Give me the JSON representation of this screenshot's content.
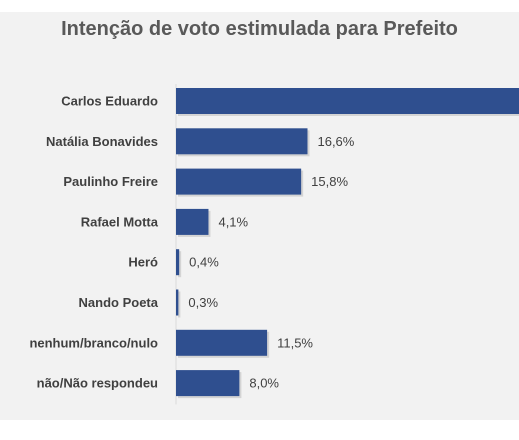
{
  "chart_data": {
    "type": "bar",
    "orientation": "horizontal",
    "title": "Intenção de voto estimulada para Prefeito",
    "categories": [
      "Carlos Eduardo",
      "Natália Bonavides",
      "Paulinho Freire",
      "Rafael Motta",
      "Heró",
      "Nando Poeta",
      "nenhum/branco/nulo",
      "não/Não respondeu"
    ],
    "values": [
      43.3,
      16.6,
      15.8,
      4.1,
      0.4,
      0.3,
      11.5,
      8.0
    ],
    "value_labels": [
      "",
      "16,6%",
      "15,8%",
      "4,1%",
      "0,4%",
      "0,3%",
      "11,5%",
      "8,0%"
    ],
    "xlim": [
      0,
      43.3
    ],
    "grid": false,
    "legend": "none",
    "colors": {
      "bar": "#2f4f8f",
      "background": "#f2f2f2",
      "text": "#404040",
      "title": "#595959"
    }
  }
}
